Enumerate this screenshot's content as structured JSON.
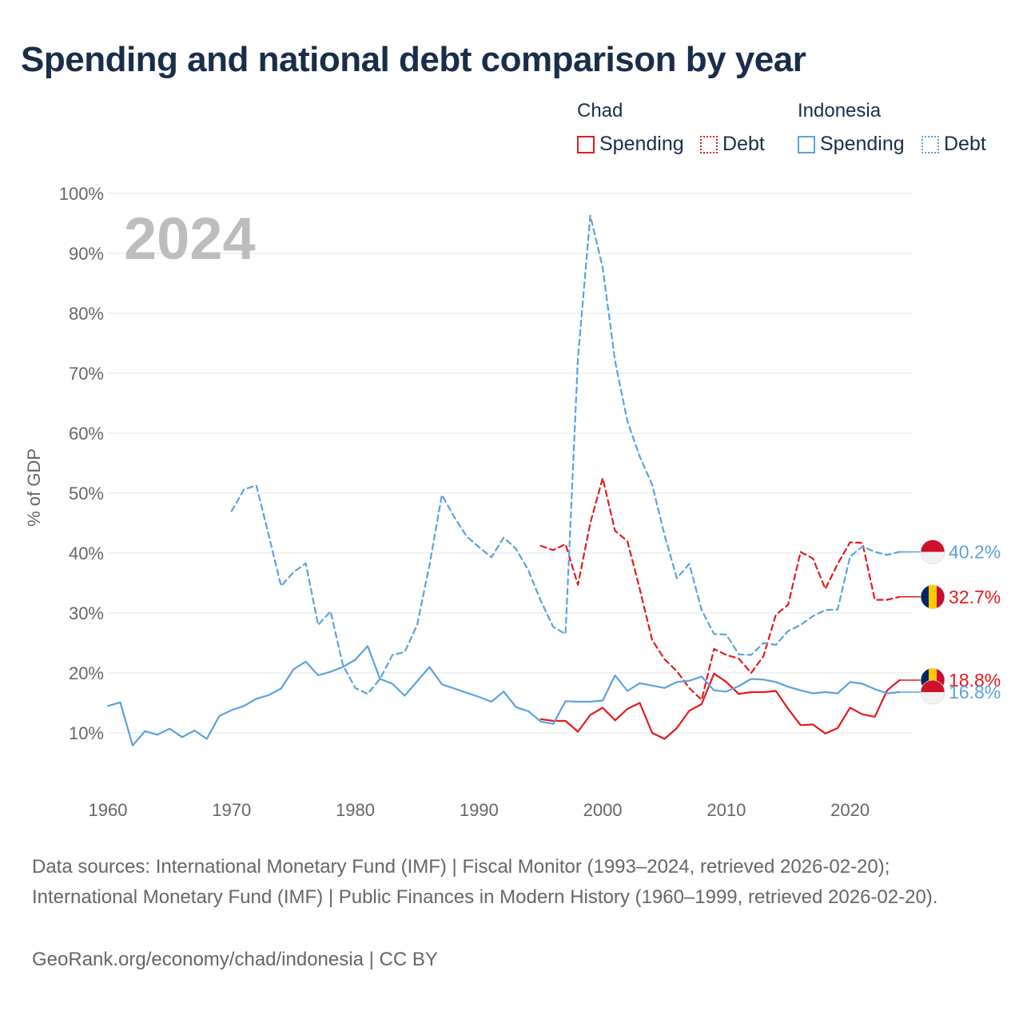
{
  "title": "Spending and national debt comparison by year",
  "legend": {
    "groups": [
      {
        "country": "Chad",
        "items": [
          {
            "label": "Spending",
            "style": "solid",
            "color": "#e41a1c"
          },
          {
            "label": "Debt",
            "style": "dotted",
            "color": "#e41a1c"
          }
        ]
      },
      {
        "country": "Indonesia",
        "items": [
          {
            "label": "Spending",
            "style": "solid",
            "color": "#5aa2e0"
          },
          {
            "label": "Debt",
            "style": "dotted",
            "color": "#5aa2e0"
          }
        ]
      }
    ]
  },
  "chart_data": {
    "type": "line",
    "title": "Spending and national debt comparison by year",
    "year_label": "2024",
    "ylabel": "% of GDP",
    "xlim": [
      1960,
      2025
    ],
    "ylim": [
      0,
      100
    ],
    "x_ticks": [
      1960,
      1970,
      1980,
      1990,
      2000,
      2010,
      2020
    ],
    "y_ticks": [
      10,
      20,
      30,
      40,
      50,
      60,
      70,
      80,
      90,
      100
    ],
    "y_tick_labels": [
      "10%",
      "20%",
      "30%",
      "40%",
      "50%",
      "60%",
      "70%",
      "80%",
      "90%",
      "100%"
    ],
    "series": [
      {
        "name": "Chad Spending",
        "color": "#e41a1c",
        "dash": "solid",
        "x": [
          1995,
          1996,
          1997,
          1998,
          1999,
          2000,
          2001,
          2002,
          2003,
          2004,
          2005,
          2006,
          2007,
          2008,
          2009,
          2010,
          2011,
          2012,
          2013,
          2014,
          2015,
          2016,
          2017,
          2018,
          2019,
          2020,
          2021,
          2022,
          2023,
          2024
        ],
        "y": [
          12.3,
          12.0,
          12.0,
          10.2,
          13.0,
          14.2,
          12.1,
          14.0,
          15.0,
          10.0,
          9.0,
          10.8,
          13.7,
          14.8,
          19.9,
          18.5,
          16.5,
          16.8,
          16.8,
          17.0,
          14.0,
          11.3,
          11.4,
          9.9,
          10.8,
          14.2,
          13.1,
          12.7,
          17.1,
          18.8
        ]
      },
      {
        "name": "Chad Debt",
        "color": "#e41a1c",
        "dash": "dashed",
        "x": [
          1995,
          1996,
          1997,
          1998,
          1999,
          2000,
          2001,
          2002,
          2003,
          2004,
          2005,
          2006,
          2007,
          2008,
          2009,
          2010,
          2011,
          2012,
          2013,
          2014,
          2015,
          2016,
          2017,
          2018,
          2019,
          2020,
          2021,
          2022,
          2023,
          2024
        ],
        "y": [
          41.2,
          40.5,
          41.5,
          34.7,
          45.0,
          52.5,
          43.7,
          42.0,
          34.0,
          25.5,
          22.3,
          20.3,
          17.5,
          15.5,
          24.0,
          23.0,
          22.4,
          20.0,
          22.8,
          29.7,
          31.4,
          40.2,
          39.1,
          34.0,
          38.2,
          41.8,
          41.7,
          32.2,
          32.2,
          32.7
        ]
      },
      {
        "name": "Indonesia Spending",
        "color": "#5aa2e0",
        "dash": "solid",
        "x": [
          1960,
          1961,
          1962,
          1963,
          1964,
          1965,
          1966,
          1967,
          1968,
          1969,
          1970,
          1971,
          1972,
          1973,
          1974,
          1975,
          1976,
          1977,
          1978,
          1979,
          1980,
          1981,
          1982,
          1983,
          1984,
          1985,
          1986,
          1987,
          1988,
          1989,
          1990,
          1991,
          1992,
          1993,
          1994,
          1995,
          1996,
          1997,
          1998,
          1999,
          2000,
          2001,
          2002,
          2003,
          2004,
          2005,
          2006,
          2007,
          2008,
          2009,
          2010,
          2011,
          2012,
          2013,
          2014,
          2015,
          2016,
          2017,
          2018,
          2019,
          2020,
          2021,
          2022,
          2023,
          2024
        ],
        "y": [
          14.5,
          15.1,
          7.9,
          10.3,
          9.7,
          10.7,
          9.3,
          10.4,
          9.0,
          12.8,
          13.8,
          14.5,
          15.7,
          16.3,
          17.4,
          20.6,
          21.9,
          19.6,
          20.2,
          21.0,
          22.2,
          24.5,
          19.0,
          18.2,
          16.2,
          18.6,
          21.0,
          18.1,
          17.4,
          16.7,
          16.0,
          15.2,
          16.9,
          14.3,
          13.6,
          11.9,
          11.5,
          15.3,
          15.2,
          15.2,
          15.4,
          19.6,
          17.0,
          18.3,
          17.9,
          17.5,
          18.5,
          18.7,
          19.4,
          17.1,
          16.9,
          17.8,
          19.0,
          18.9,
          18.5,
          17.7,
          17.1,
          16.6,
          16.8,
          16.6,
          18.5,
          18.2,
          17.3,
          16.6,
          16.8
        ]
      },
      {
        "name": "Indonesia Debt",
        "color": "#5aa2e0",
        "dash": "dashed",
        "x": [
          1970,
          1971,
          1972,
          1973,
          1974,
          1975,
          1976,
          1977,
          1978,
          1979,
          1980,
          1981,
          1982,
          1983,
          1984,
          1985,
          1986,
          1987,
          1988,
          1989,
          1990,
          1991,
          1992,
          1993,
          1994,
          1995,
          1996,
          1997,
          1998,
          1999,
          2000,
          2001,
          2002,
          2003,
          2004,
          2005,
          2006,
          2007,
          2008,
          2009,
          2010,
          2011,
          2012,
          2013,
          2014,
          2015,
          2016,
          2017,
          2018,
          2019,
          2020,
          2021,
          2022,
          2023,
          2024
        ],
        "y": [
          47.0,
          50.6,
          51.3,
          43.0,
          34.5,
          36.8,
          38.3,
          28.0,
          30.3,
          21.3,
          17.5,
          16.5,
          19.0,
          23.0,
          23.5,
          28.0,
          38.0,
          49.7,
          46.0,
          42.8,
          41.0,
          39.3,
          42.6,
          40.7,
          37.1,
          32.0,
          27.7,
          26.5,
          72.5,
          96.3,
          87.6,
          72.0,
          62.0,
          56.1,
          51.4,
          43.0,
          35.8,
          38.2,
          30.5,
          26.5,
          26.4,
          23.1,
          23.0,
          25.0,
          24.7,
          27.0,
          28.0,
          29.5,
          30.5,
          30.6,
          39.4,
          41.1,
          40.2,
          39.7,
          40.2
        ]
      }
    ],
    "end_labels": [
      {
        "text": "40.2%",
        "country": "Indonesia",
        "value": 40.2,
        "color": "#5aa2e0"
      },
      {
        "text": "32.7%",
        "country": "Chad",
        "value": 32.7,
        "color": "#e41a1c"
      },
      {
        "text": "18.8%",
        "country": "Chad",
        "value": 18.8,
        "color": "#e41a1c"
      },
      {
        "text": "16.8%",
        "country": "Indonesia",
        "value": 16.8,
        "color": "#5aa2e0"
      }
    ]
  },
  "footer": {
    "sources": "Data sources: International Monetary Fund (IMF) | Fiscal Monitor (1993–2024, retrieved 2026-02-20); International Monetary Fund (IMF) | Public Finances in Modern History (1960–1999, retrieved 2026-02-20).",
    "credit": "GeoRank.org/economy/chad/indonesia | CC BY"
  }
}
